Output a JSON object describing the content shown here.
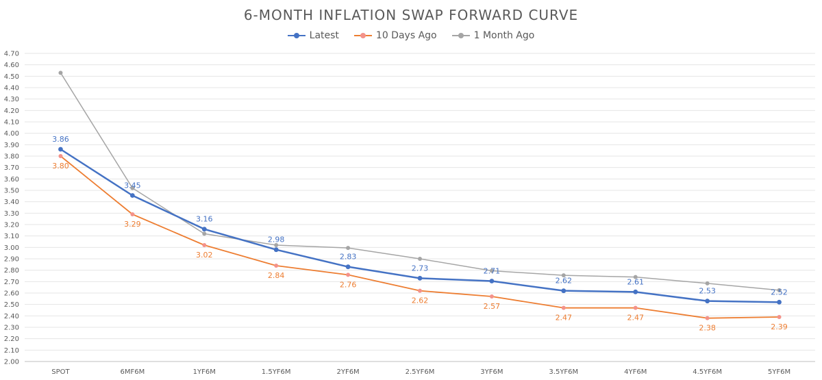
{
  "chart_data": {
    "type": "line",
    "title": "6-MONTH INFLATION SWAP FORWARD CURVE",
    "xlabel": "",
    "ylabel": "",
    "categories": [
      "SPOT",
      "6MF6M",
      "1YF6M",
      "1.5YF6M",
      "2YF6M",
      "2.5YF6M",
      "3YF6M",
      "3.5YF6M",
      "4YF6M",
      "4.5YF6M",
      "5YF6M"
    ],
    "ylim": [
      2.0,
      4.7
    ],
    "ytick_step": 0.1,
    "grid": true,
    "legend": "top-center",
    "series": [
      {
        "name": "Latest",
        "color": "#4472C4",
        "values": [
          3.86,
          3.455,
          3.16,
          2.98,
          2.83,
          2.73,
          2.705,
          2.62,
          2.61,
          2.53,
          2.52
        ],
        "labels": [
          "3.86",
          "3.45",
          "3.16",
          "2.98",
          "2.83",
          "2.73",
          "2.71",
          "2.62",
          "2.61",
          "2.53",
          "2.52"
        ],
        "label_position": "above"
      },
      {
        "name": "10 Days Ago",
        "color": "#ED7D31",
        "marker_color": "#F4928A",
        "values": [
          3.8,
          3.29,
          3.02,
          2.84,
          2.76,
          2.62,
          2.57,
          2.47,
          2.47,
          2.38,
          2.39
        ],
        "labels": [
          "3.80",
          "3.29",
          "3.02",
          "2.84",
          "2.76",
          "2.62",
          "2.57",
          "2.47",
          "2.47",
          "2.38",
          "2.39"
        ],
        "label_position": "below"
      },
      {
        "name": "1 Month Ago",
        "color": "#A5A5A5",
        "values": [
          4.53,
          3.52,
          3.12,
          3.02,
          2.995,
          2.9,
          2.795,
          2.755,
          2.74,
          2.685,
          2.625
        ],
        "labels": [],
        "label_position": "none"
      }
    ]
  }
}
